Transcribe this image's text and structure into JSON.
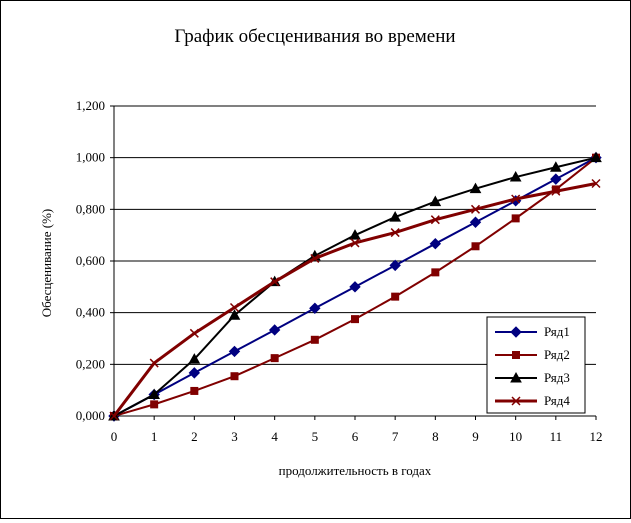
{
  "chart_data": {
    "type": "line",
    "title": "График обесценивания во времени",
    "xlabel": "продолжительность в годах",
    "ylabel": "Обесценивание (%)",
    "x": [
      0,
      1,
      2,
      3,
      4,
      5,
      6,
      7,
      8,
      9,
      10,
      11,
      12
    ],
    "x_tick_labels": [
      "0",
      "1",
      "2",
      "3",
      "4",
      "5",
      "6",
      "7",
      "8",
      "9",
      "10",
      "11",
      "12"
    ],
    "ylim": [
      0,
      1.2
    ],
    "y_ticks": [
      0,
      0.2,
      0.4,
      0.6,
      0.8,
      1.0,
      1.2
    ],
    "y_tick_labels": [
      "0,000",
      "0,200",
      "0,400",
      "0,600",
      "0,800",
      "1,000",
      "1,200"
    ],
    "grid": "horizontal",
    "legend_position": "bottom-right",
    "series": [
      {
        "name": "Ряд1",
        "color": "#000080",
        "marker": "diamond",
        "values": [
          0,
          0.083,
          0.167,
          0.25,
          0.333,
          0.417,
          0.5,
          0.583,
          0.667,
          0.75,
          0.833,
          0.917,
          1.0
        ]
      },
      {
        "name": "Ряд2",
        "color": "#800000",
        "marker": "square",
        "values": [
          0,
          0.045,
          0.097,
          0.154,
          0.224,
          0.295,
          0.375,
          0.462,
          0.556,
          0.657,
          0.765,
          0.877,
          1.0
        ]
      },
      {
        "name": "Ряд3",
        "color": "#000000",
        "marker": "triangle",
        "values": [
          0,
          0.083,
          0.22,
          0.39,
          0.52,
          0.62,
          0.7,
          0.77,
          0.83,
          0.88,
          0.925,
          0.963,
          1.0
        ]
      },
      {
        "name": "Ряд4",
        "color": "#800000",
        "marker": "x",
        "values": [
          0,
          0.205,
          0.32,
          0.42,
          0.52,
          0.61,
          0.67,
          0.71,
          0.76,
          0.8,
          0.84,
          0.87,
          0.9
        ]
      }
    ]
  }
}
